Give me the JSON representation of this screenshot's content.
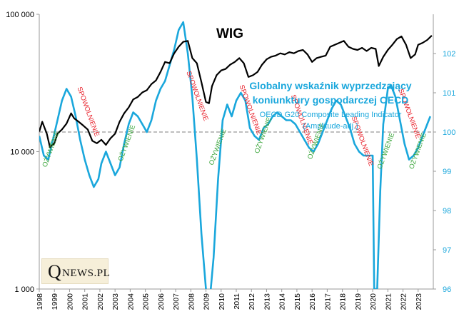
{
  "chart_data": {
    "type": "line",
    "wig_title": "WIG",
    "cli_title_line1": "Globalny wskaźnik wyprzedzający",
    "cli_title_line2": "koniunktury gospodarczej OECD",
    "cli_subtitle_line1": "OECD G20 Composite Leading Indicator",
    "cli_subtitle_line2": "(Amplitude-adj.)",
    "y_left": {
      "scale": "log",
      "range": [
        1000,
        100000
      ],
      "ticks": [
        "100 000",
        "10 000",
        "1 000"
      ]
    },
    "y_right": {
      "range": [
        96,
        103
      ],
      "ticks": [
        "96",
        "97",
        "98",
        "99",
        "100",
        "101",
        "102"
      ]
    },
    "x_ticks": [
      "1998",
      "1999",
      "2000",
      "2001",
      "2002",
      "2003",
      "2004",
      "2005",
      "2006",
      "2007",
      "2008",
      "2009",
      "2010",
      "2011",
      "2012",
      "2013",
      "2014",
      "2015",
      "2016",
      "2017",
      "2018",
      "2019",
      "2020",
      "2021",
      "2022",
      "2023"
    ],
    "reference_line": {
      "axis": "right",
      "value": 100
    },
    "colors": {
      "wig": "#000000",
      "cli": "#1aa7dc",
      "slow": "#e8202a",
      "recovery": "#3aa53a",
      "reference": "#999999"
    },
    "series": [
      {
        "name": "WIG",
        "axis": "left",
        "x": [
          1998.0,
          1998.2,
          1998.5,
          1998.7,
          1999.0,
          1999.2,
          1999.5,
          1999.8,
          2000.1,
          2000.3,
          2000.6,
          2000.9,
          2001.2,
          2001.5,
          2001.8,
          2002.1,
          2002.4,
          2002.7,
          2003.0,
          2003.3,
          2003.6,
          2003.9,
          2004.2,
          2004.5,
          2004.8,
          2005.1,
          2005.4,
          2005.7,
          2006.0,
          2006.3,
          2006.6,
          2006.9,
          2007.2,
          2007.5,
          2007.8,
          2008.1,
          2008.4,
          2008.7,
          2009.0,
          2009.2,
          2009.4,
          2009.7,
          2010.0,
          2010.3,
          2010.6,
          2010.9,
          2011.2,
          2011.5,
          2011.8,
          2012.1,
          2012.4,
          2012.7,
          2013.0,
          2013.3,
          2013.6,
          2013.9,
          2014.2,
          2014.5,
          2014.8,
          2015.1,
          2015.4,
          2015.7,
          2016.0,
          2016.3,
          2016.6,
          2016.9,
          2017.2,
          2017.5,
          2017.8,
          2018.1,
          2018.4,
          2018.7,
          2019.0,
          2019.3,
          2019.6,
          2019.9,
          2020.2,
          2020.4,
          2020.7,
          2021.0,
          2021.3,
          2021.6,
          2021.9,
          2022.2,
          2022.5,
          2022.8,
          2023.0,
          2023.3,
          2023.6,
          2023.9
        ],
        "values": [
          14000,
          16500,
          13500,
          10800,
          11500,
          13500,
          14500,
          16000,
          19000,
          17500,
          16500,
          15500,
          14500,
          12000,
          11500,
          12200,
          11200,
          12500,
          13500,
          16500,
          19000,
          21000,
          24000,
          25000,
          27000,
          28000,
          31000,
          33000,
          38000,
          45000,
          44000,
          52000,
          58000,
          63000,
          64000,
          48000,
          44000,
          32000,
          23000,
          22500,
          30000,
          36000,
          39000,
          40000,
          43000,
          45000,
          48000,
          44000,
          35000,
          36000,
          38000,
          43000,
          47000,
          49000,
          50000,
          52000,
          51000,
          53000,
          52000,
          54000,
          55000,
          51000,
          45000,
          48000,
          49000,
          50000,
          58000,
          60000,
          62000,
          64000,
          58000,
          56000,
          55000,
          57000,
          54000,
          57000,
          56000,
          42000,
          49000,
          55000,
          60000,
          66000,
          69000,
          60000,
          48000,
          51000,
          60000,
          62000,
          65000,
          70000
        ]
      },
      {
        "name": "OECD G20 Composite Leading Indicator",
        "axis": "right",
        "x": [
          1998.0,
          1998.3,
          1998.6,
          1998.9,
          1999.2,
          1999.5,
          1999.8,
          2000.1,
          2000.4,
          2000.7,
          2001.0,
          2001.3,
          2001.6,
          2001.9,
          2002.1,
          2002.4,
          2002.7,
          2003.0,
          2003.3,
          2003.6,
          2003.9,
          2004.2,
          2004.5,
          2004.8,
          2005.1,
          2005.4,
          2005.7,
          2006.0,
          2006.3,
          2006.6,
          2006.9,
          2007.2,
          2007.5,
          2007.8,
          2008.1,
          2008.4,
          2008.7,
          2009.0,
          2009.2,
          2009.5,
          2009.8,
          2010.1,
          2010.4,
          2010.7,
          2011.0,
          2011.3,
          2011.6,
          2011.9,
          2012.2,
          2012.5,
          2012.8,
          2013.1,
          2013.4,
          2013.7,
          2014.0,
          2014.3,
          2014.6,
          2014.9,
          2015.2,
          2015.5,
          2015.8,
          2016.1,
          2016.4,
          2016.7,
          2017.0,
          2017.3,
          2017.6,
          2017.9,
          2018.2,
          2018.5,
          2018.8,
          2019.1,
          2019.4,
          2019.7,
          2020.0,
          2020.1,
          2020.3,
          2020.5,
          2020.7,
          2021.0,
          2021.2,
          2021.5,
          2021.8,
          2022.1,
          2022.4,
          2022.7,
          2023.0,
          2023.3,
          2023.6,
          2023.8
        ],
        "values": [
          99.9,
          99.4,
          99.3,
          99.8,
          100.3,
          100.8,
          101.1,
          100.9,
          100.4,
          99.8,
          99.3,
          98.9,
          98.6,
          98.8,
          99.2,
          99.5,
          99.2,
          98.9,
          99.1,
          99.7,
          100.2,
          100.5,
          100.4,
          100.2,
          100.0,
          100.3,
          100.8,
          101.1,
          101.3,
          101.7,
          102.1,
          102.6,
          102.8,
          102.0,
          100.9,
          99.3,
          97.4,
          96.0,
          95.5,
          96.8,
          98.8,
          100.3,
          100.7,
          100.4,
          100.8,
          101.0,
          100.8,
          100.1,
          99.9,
          99.8,
          100.1,
          100.2,
          100.4,
          100.5,
          100.4,
          100.3,
          100.3,
          100.2,
          100.0,
          99.8,
          99.6,
          99.5,
          99.7,
          100.0,
          100.3,
          100.6,
          100.8,
          100.7,
          100.4,
          100.1,
          99.7,
          99.5,
          99.4,
          99.4,
          99.4,
          96.0,
          96.0,
          98.5,
          100.2,
          101.1,
          101.2,
          100.9,
          100.3,
          99.7,
          99.3,
          99.4,
          99.6,
          99.9,
          100.2,
          100.4
        ]
      }
    ],
    "annotations": [
      {
        "text": "OŻYWIENIE",
        "kind": "recovery",
        "x": 1998.9,
        "y": 99.55
      },
      {
        "text": "SPOWOLNIENIE",
        "kind": "slow",
        "x": 2001.1,
        "y": 100.5
      },
      {
        "text": "OŻYWIENIE",
        "kind": "recovery",
        "x": 2003.9,
        "y": 99.7
      },
      {
        "text": "SPOWOLNIENIE",
        "kind": "slow",
        "x": 2008.3,
        "y": 100.9
      },
      {
        "text": "OŻYWIENIE",
        "kind": "recovery",
        "x": 2009.9,
        "y": 99.6
      },
      {
        "text": "SPOWOLNIENIE",
        "kind": "slow",
        "x": 2011.8,
        "y": 100.55
      },
      {
        "text": "OŻYWIENIE",
        "kind": "recovery",
        "x": 2012.9,
        "y": 99.9
      },
      {
        "text": "SPOWOLNIENIE",
        "kind": "slow",
        "x": 2015.2,
        "y": 100.3
      },
      {
        "text": "OŻYWIENIE",
        "kind": "recovery",
        "x": 2016.4,
        "y": 99.75
      },
      {
        "text": "SPOWOLNIENIE",
        "kind": "slow",
        "x": 2019.2,
        "y": 99.75
      },
      {
        "text": "OŻYWIENIE",
        "kind": "recovery",
        "x": 2021.0,
        "y": 99.5
      },
      {
        "text": "SPOWOLNIENIE",
        "kind": "slow",
        "x": 2022.3,
        "y": 100.45
      },
      {
        "text": "OŻYWIENIE",
        "kind": "recovery",
        "x": 2023.1,
        "y": 99.5
      }
    ]
  },
  "logo": {
    "q": "Q",
    "rest": "NEWS.PL"
  }
}
